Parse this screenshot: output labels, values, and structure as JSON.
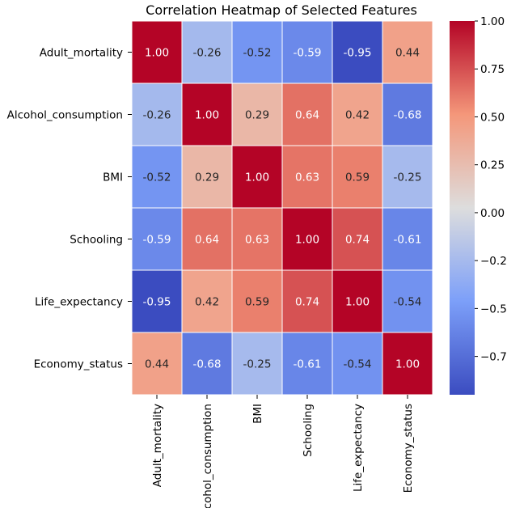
{
  "chart_data": {
    "type": "heatmap",
    "title": "Correlation Heatmap of Selected Features",
    "rows": [
      "Adult_mortality",
      "Alcohol_consumption",
      "BMI",
      "Schooling",
      "Life_expectancy",
      "Economy_status"
    ],
    "cols": [
      "Adult_mortality",
      "Alcohol_consumption",
      "BMI",
      "Schooling",
      "Life_expectancy",
      "Economy_status"
    ],
    "values": [
      [
        1.0,
        -0.26,
        -0.52,
        -0.59,
        -0.95,
        0.44
      ],
      [
        -0.26,
        1.0,
        0.29,
        0.64,
        0.42,
        -0.68
      ],
      [
        -0.52,
        0.29,
        1.0,
        0.63,
        0.59,
        -0.25
      ],
      [
        -0.59,
        0.64,
        0.63,
        1.0,
        0.74,
        -0.61
      ],
      [
        -0.95,
        0.42,
        0.59,
        0.74,
        1.0,
        -0.54
      ],
      [
        0.44,
        -0.68,
        -0.25,
        -0.61,
        -0.54,
        1.0
      ]
    ],
    "colormap": "coolwarm",
    "colorbar": {
      "range": [
        -0.95,
        1.0
      ],
      "ticks": [
        1.0,
        0.75,
        0.5,
        0.25,
        0.0,
        -0.25,
        -0.5,
        -0.75
      ],
      "tick_labels": [
        "1.00",
        "0.75",
        "0.50",
        "0.25",
        "0.00",
        "−0.25",
        "−0.50",
        "−0.75"
      ]
    },
    "annotations": "two-decimal values in each cell",
    "grid": false
  }
}
